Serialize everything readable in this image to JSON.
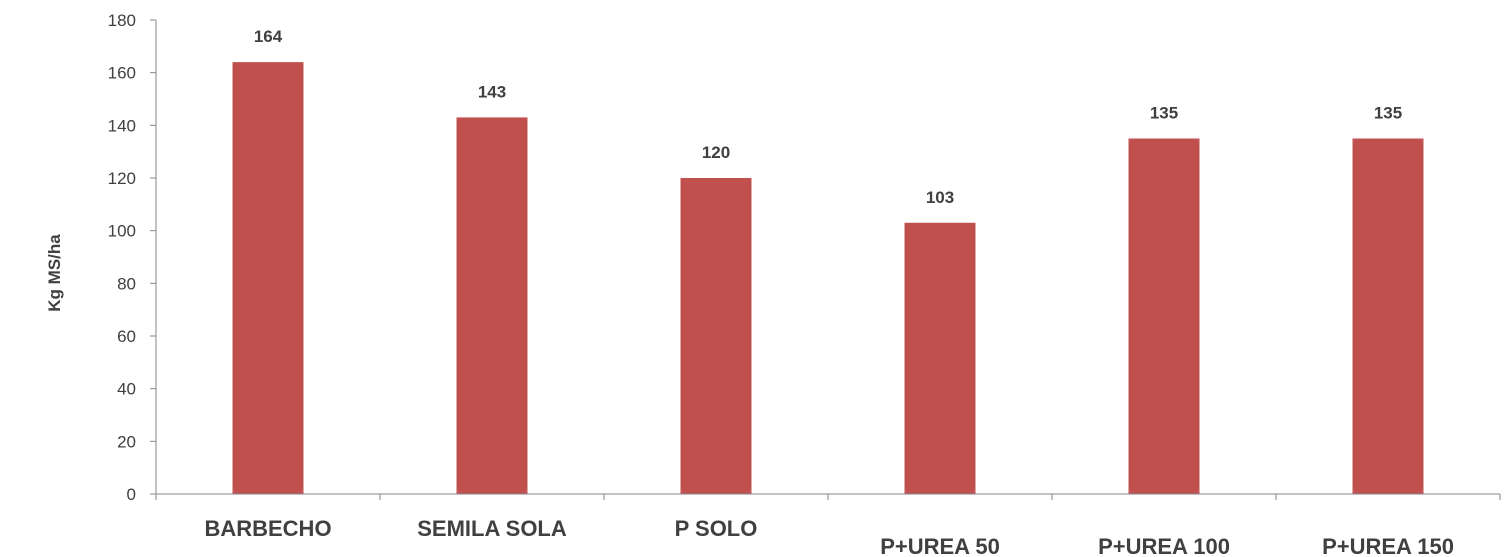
{
  "chart_data": {
    "type": "bar",
    "title": "",
    "xlabel": "",
    "ylabel": "Kg MS/ha",
    "ylim": [
      0,
      180
    ],
    "yticks": [
      0,
      20,
      40,
      60,
      80,
      100,
      120,
      140,
      160,
      180
    ],
    "grid": false,
    "categories": [
      "BARBECHO",
      "SEMILA SOLA",
      "P SOLO",
      "P+UREA 50",
      "P+UREA 100",
      "P+UREA 150"
    ],
    "values": [
      164,
      143,
      120,
      103,
      135,
      135
    ],
    "data_labels": [
      "164",
      "143",
      "120",
      "103",
      "135",
      "135"
    ],
    "bar_color": "#C0504D",
    "axis_color": "#868686"
  }
}
